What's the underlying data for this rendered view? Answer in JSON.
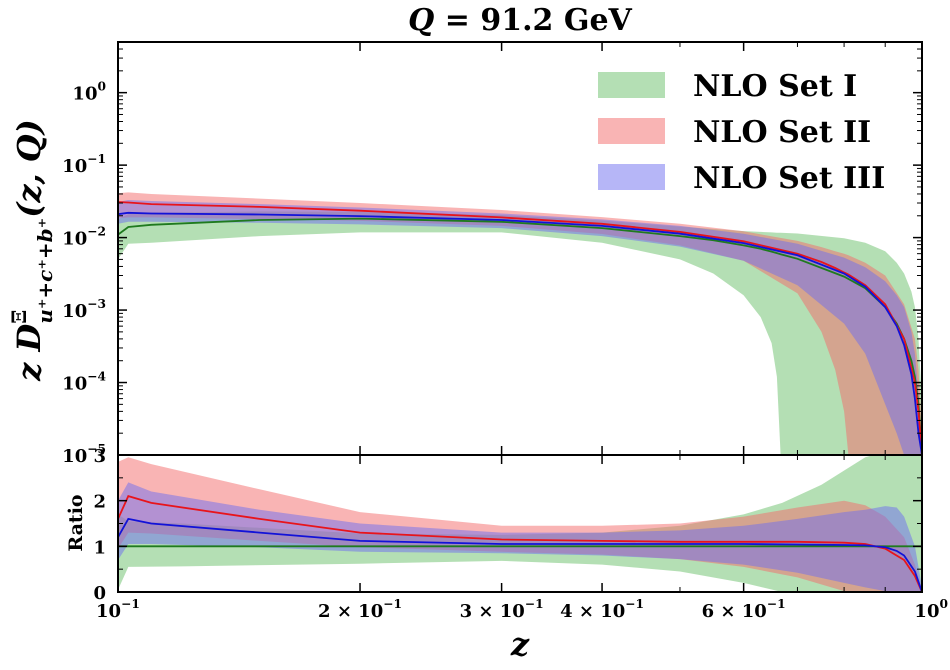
{
  "chart_data": {
    "type": "area",
    "title": "Q = 91.2 GeV",
    "title_parts": {
      "var": "Q",
      "eq": " = 91.2 GeV"
    },
    "xlabel": "z",
    "xscale": "log",
    "xlim": [
      0.1,
      1.0
    ],
    "x_ticks": [
      {
        "value": 0.1,
        "base": "10",
        "exp": "−1",
        "mult": ""
      },
      {
        "value": 0.2,
        "base": "10",
        "exp": "−1",
        "mult": "2 × "
      },
      {
        "value": 0.3,
        "base": "10",
        "exp": "−1",
        "mult": "3 × "
      },
      {
        "value": 0.4,
        "base": "10",
        "exp": "−1",
        "mult": "4 × "
      },
      {
        "value": 0.6,
        "base": "10",
        "exp": "−1",
        "mult": "6 × "
      },
      {
        "value": 1.0,
        "base": "10",
        "exp": "0",
        "mult": ""
      }
    ],
    "top_panel": {
      "ylabel": "z D^Ξ_{u⁺+c⁺+b⁺}(z, Q)",
      "ylabel_parts": {
        "pre": "z D",
        "sup": "Ξ",
        "sub": "u⁺+c⁺+b⁺",
        "post": "(z, Q)"
      },
      "yscale": "log",
      "ylim": [
        1e-05,
        5
      ],
      "y_ticks": [
        {
          "value": 1e-05,
          "base": "10",
          "exp": "−5"
        },
        {
          "value": 0.0001,
          "base": "10",
          "exp": "−4"
        },
        {
          "value": 0.001,
          "base": "10",
          "exp": "−3"
        },
        {
          "value": 0.01,
          "base": "10",
          "exp": "−2"
        },
        {
          "value": 0.1,
          "base": "10",
          "exp": "−1"
        },
        {
          "value": 1,
          "base": "10",
          "exp": "0"
        }
      ],
      "series": [
        {
          "name": "NLO Set I",
          "fill": "#6abf69",
          "fill_opacity": 0.5,
          "line": "#1f7a1f",
          "points": [
            {
              "z": 0.1,
              "c": 0.011,
              "lo": 0.005,
              "hi": 0.018
            },
            {
              "z": 0.103,
              "c": 0.014,
              "lo": 0.0082,
              "hi": 0.021
            },
            {
              "z": 0.11,
              "c": 0.015,
              "lo": 0.0085,
              "hi": 0.022
            },
            {
              "z": 0.15,
              "c": 0.0175,
              "lo": 0.0105,
              "hi": 0.023
            },
            {
              "z": 0.2,
              "c": 0.0183,
              "lo": 0.0118,
              "hi": 0.0226
            },
            {
              "z": 0.3,
              "c": 0.0165,
              "lo": 0.0118,
              "hi": 0.0205
            },
            {
              "z": 0.4,
              "c": 0.0135,
              "lo": 0.0085,
              "hi": 0.0172
            },
            {
              "z": 0.5,
              "c": 0.0105,
              "lo": 0.005,
              "hi": 0.0142
            },
            {
              "z": 0.55,
              "c": 0.0092,
              "lo": 0.0032,
              "hi": 0.0132
            },
            {
              "z": 0.6,
              "c": 0.0078,
              "lo": 0.0016,
              "hi": 0.0123
            },
            {
              "z": 0.63,
              "c": 0.007,
              "lo": 0.0008,
              "hi": 0.012
            },
            {
              "z": 0.65,
              "c": 0.0064,
              "lo": 0.00035,
              "hi": 0.0118
            },
            {
              "z": 0.66,
              "c": 0.0061,
              "lo": 0.00012,
              "hi": 0.0117
            },
            {
              "z": 0.667,
              "c": 0.0059,
              "lo": 1e-05,
              "hi": 0.0117
            },
            {
              "z": 0.7,
              "c": 0.0051,
              "lo": 1e-05,
              "hi": 0.0114
            },
            {
              "z": 0.8,
              "c": 0.0029,
              "lo": 1e-05,
              "hi": 0.0098
            },
            {
              "z": 0.85,
              "c": 0.002,
              "lo": 1e-05,
              "hi": 0.0085
            },
            {
              "z": 0.9,
              "c": 0.0011,
              "lo": 1e-05,
              "hi": 0.0065
            },
            {
              "z": 0.93,
              "c": 0.00065,
              "lo": 1e-05,
              "hi": 0.0045
            },
            {
              "z": 0.95,
              "c": 0.0004,
              "lo": 1e-05,
              "hi": 0.0032
            },
            {
              "z": 0.97,
              "c": 0.0002,
              "lo": 1e-05,
              "hi": 0.0018
            },
            {
              "z": 0.98,
              "c": 0.00012,
              "lo": 1e-05,
              "hi": 0.0011
            },
            {
              "z": 0.99,
              "c": 5e-05,
              "lo": 1e-05,
              "hi": 0.0004
            },
            {
              "z": 1.0,
              "c": 1e-05,
              "lo": 1e-05,
              "hi": 5e-05
            }
          ]
        },
        {
          "name": "NLO Set II",
          "fill": "#f46a6a",
          "fill_opacity": 0.5,
          "line": "#e8141b",
          "points": [
            {
              "z": 0.1,
              "c": 0.031,
              "lo": 0.0185,
              "hi": 0.041
            },
            {
              "z": 0.103,
              "c": 0.0305,
              "lo": 0.019,
              "hi": 0.042
            },
            {
              "z": 0.11,
              "c": 0.029,
              "lo": 0.019,
              "hi": 0.04
            },
            {
              "z": 0.15,
              "c": 0.0265,
              "lo": 0.018,
              "hi": 0.0345
            },
            {
              "z": 0.2,
              "c": 0.0235,
              "lo": 0.017,
              "hi": 0.03
            },
            {
              "z": 0.3,
              "c": 0.019,
              "lo": 0.0145,
              "hi": 0.024
            },
            {
              "z": 0.4,
              "c": 0.0155,
              "lo": 0.0112,
              "hi": 0.0192
            },
            {
              "z": 0.5,
              "c": 0.012,
              "lo": 0.0078,
              "hi": 0.0155
            },
            {
              "z": 0.6,
              "c": 0.0089,
              "lo": 0.0048,
              "hi": 0.0122
            },
            {
              "z": 0.7,
              "c": 0.006,
              "lo": 0.0017,
              "hi": 0.009
            },
            {
              "z": 0.75,
              "c": 0.0046,
              "lo": 0.0005,
              "hi": 0.0074
            },
            {
              "z": 0.78,
              "c": 0.0038,
              "lo": 0.00015,
              "hi": 0.0065
            },
            {
              "z": 0.8,
              "c": 0.0033,
              "lo": 4e-05,
              "hi": 0.006
            },
            {
              "z": 0.81,
              "c": 0.0031,
              "lo": 1e-05,
              "hi": 0.0057
            },
            {
              "z": 0.85,
              "c": 0.0022,
              "lo": 1e-05,
              "hi": 0.0045
            },
            {
              "z": 0.9,
              "c": 0.0012,
              "lo": 1e-05,
              "hi": 0.003
            },
            {
              "z": 0.95,
              "c": 0.0004,
              "lo": 1e-05,
              "hi": 0.0012
            },
            {
              "z": 0.98,
              "c": 0.0001,
              "lo": 1e-05,
              "hi": 0.0004
            },
            {
              "z": 0.99,
              "c": 4e-05,
              "lo": 1e-05,
              "hi": 0.00015
            },
            {
              "z": 1.0,
              "c": 1e-05,
              "lo": 1e-05,
              "hi": 2e-05
            }
          ]
        },
        {
          "name": "NLO Set III",
          "fill": "#6e6ef0",
          "fill_opacity": 0.5,
          "line": "#1212d8",
          "points": [
            {
              "z": 0.1,
              "c": 0.021,
              "lo": 0.0155,
              "hi": 0.031
            },
            {
              "z": 0.103,
              "c": 0.022,
              "lo": 0.0165,
              "hi": 0.033
            },
            {
              "z": 0.11,
              "c": 0.0215,
              "lo": 0.0165,
              "hi": 0.032
            },
            {
              "z": 0.15,
              "c": 0.0208,
              "lo": 0.016,
              "hi": 0.029
            },
            {
              "z": 0.2,
              "c": 0.0198,
              "lo": 0.0152,
              "hi": 0.026
            },
            {
              "z": 0.3,
              "c": 0.0175,
              "lo": 0.0135,
              "hi": 0.0215
            },
            {
              "z": 0.4,
              "c": 0.0145,
              "lo": 0.0105,
              "hi": 0.0178
            },
            {
              "z": 0.5,
              "c": 0.0113,
              "lo": 0.0075,
              "hi": 0.0145
            },
            {
              "z": 0.6,
              "c": 0.0084,
              "lo": 0.0048,
              "hi": 0.0113
            },
            {
              "z": 0.7,
              "c": 0.0057,
              "lo": 0.0022,
              "hi": 0.0082
            },
            {
              "z": 0.8,
              "c": 0.0032,
              "lo": 0.00065,
              "hi": 0.0053
            },
            {
              "z": 0.85,
              "c": 0.0021,
              "lo": 0.00025,
              "hi": 0.0039
            },
            {
              "z": 0.9,
              "c": 0.0011,
              "lo": 5e-05,
              "hi": 0.0025
            },
            {
              "z": 0.93,
              "c": 0.0006,
              "lo": 2e-05,
              "hi": 0.0016
            },
            {
              "z": 0.95,
              "c": 0.00033,
              "lo": 1e-05,
              "hi": 0.0011
            },
            {
              "z": 0.97,
              "c": 0.00013,
              "lo": 1e-05,
              "hi": 0.0005
            },
            {
              "z": 0.98,
              "c": 6e-05,
              "lo": 1e-05,
              "hi": 0.00025
            },
            {
              "z": 0.99,
              "c": 2e-05,
              "lo": 1e-05,
              "hi": 7e-05
            },
            {
              "z": 1.0,
              "c": 1e-05,
              "lo": 1e-05,
              "hi": 1e-05
            }
          ]
        }
      ]
    },
    "bottom_panel": {
      "ylabel": "Ratio",
      "yscale": "linear",
      "ylim": [
        0,
        3
      ],
      "y_ticks": [
        {
          "value": 0,
          "label": "0"
        },
        {
          "value": 1,
          "label": "1"
        },
        {
          "value": 2,
          "label": "2"
        },
        {
          "value": 3,
          "label": "3"
        }
      ],
      "series": [
        {
          "name": "NLO Set I",
          "fill": "#6abf69",
          "fill_opacity": 0.5,
          "line": "#1f7a1f",
          "points": [
            {
              "z": 0.1,
              "c": 1.0,
              "lo": 0.05,
              "hi": 1.7
            },
            {
              "z": 0.103,
              "c": 1.0,
              "lo": 0.55,
              "hi": 1.55
            },
            {
              "z": 0.12,
              "c": 1.0,
              "lo": 0.56,
              "hi": 1.5
            },
            {
              "z": 0.2,
              "c": 1.0,
              "lo": 0.62,
              "hi": 1.28
            },
            {
              "z": 0.3,
              "c": 1.0,
              "lo": 0.68,
              "hi": 1.25
            },
            {
              "z": 0.4,
              "c": 1.0,
              "lo": 0.6,
              "hi": 1.3
            },
            {
              "z": 0.5,
              "c": 1.0,
              "lo": 0.45,
              "hi": 1.45
            },
            {
              "z": 0.6,
              "c": 1.0,
              "lo": 0.2,
              "hi": 1.7
            },
            {
              "z": 0.67,
              "c": 1.0,
              "lo": 0.0,
              "hi": 1.95
            },
            {
              "z": 0.75,
              "c": 1.0,
              "lo": 0.0,
              "hi": 2.35
            },
            {
              "z": 0.85,
              "c": 1.0,
              "lo": 0.0,
              "hi": 2.95
            },
            {
              "z": 0.87,
              "c": 1.0,
              "lo": 0.0,
              "hi": 3.0
            },
            {
              "z": 1.0,
              "c": 1.0,
              "lo": 0.0,
              "hi": 3.0
            }
          ]
        },
        {
          "name": "NLO Set II",
          "fill": "#f46a6a",
          "fill_opacity": 0.5,
          "line": "#e8141b",
          "points": [
            {
              "z": 0.1,
              "c": 1.6,
              "lo": 0.95,
              "hi": 2.85
            },
            {
              "z": 0.103,
              "c": 2.1,
              "lo": 1.3,
              "hi": 2.95
            },
            {
              "z": 0.11,
              "c": 1.95,
              "lo": 1.28,
              "hi": 2.8
            },
            {
              "z": 0.15,
              "c": 1.6,
              "lo": 1.12,
              "hi": 2.25
            },
            {
              "z": 0.2,
              "c": 1.3,
              "lo": 0.98,
              "hi": 1.75
            },
            {
              "z": 0.3,
              "c": 1.15,
              "lo": 0.88,
              "hi": 1.45
            },
            {
              "z": 0.4,
              "c": 1.12,
              "lo": 0.82,
              "hi": 1.45
            },
            {
              "z": 0.5,
              "c": 1.1,
              "lo": 0.72,
              "hi": 1.5
            },
            {
              "z": 0.6,
              "c": 1.1,
              "lo": 0.55,
              "hi": 1.65
            },
            {
              "z": 0.7,
              "c": 1.1,
              "lo": 0.32,
              "hi": 1.85
            },
            {
              "z": 0.8,
              "c": 1.08,
              "lo": 0.02,
              "hi": 2.0
            },
            {
              "z": 0.85,
              "c": 1.05,
              "lo": 0.0,
              "hi": 1.9
            },
            {
              "z": 0.9,
              "c": 0.95,
              "lo": 0.0,
              "hi": 1.65
            },
            {
              "z": 0.95,
              "c": 0.7,
              "lo": 0.0,
              "hi": 1.2
            },
            {
              "z": 0.98,
              "c": 0.35,
              "lo": 0.0,
              "hi": 0.6
            },
            {
              "z": 1.0,
              "c": 0.0,
              "lo": 0.0,
              "hi": 0.05
            }
          ]
        },
        {
          "name": "NLO Set III",
          "fill": "#6e6ef0",
          "fill_opacity": 0.5,
          "line": "#1212d8",
          "points": [
            {
              "z": 0.1,
              "c": 1.2,
              "lo": 0.7,
              "hi": 2.0
            },
            {
              "z": 0.103,
              "c": 1.6,
              "lo": 1.05,
              "hi": 2.4
            },
            {
              "z": 0.11,
              "c": 1.5,
              "lo": 1.05,
              "hi": 2.2
            },
            {
              "z": 0.15,
              "c": 1.3,
              "lo": 0.98,
              "hi": 1.8
            },
            {
              "z": 0.2,
              "c": 1.12,
              "lo": 0.88,
              "hi": 1.5
            },
            {
              "z": 0.3,
              "c": 1.05,
              "lo": 0.85,
              "hi": 1.3
            },
            {
              "z": 0.4,
              "c": 1.05,
              "lo": 0.8,
              "hi": 1.3
            },
            {
              "z": 0.5,
              "c": 1.05,
              "lo": 0.72,
              "hi": 1.35
            },
            {
              "z": 0.6,
              "c": 1.05,
              "lo": 0.6,
              "hi": 1.45
            },
            {
              "z": 0.7,
              "c": 1.04,
              "lo": 0.42,
              "hi": 1.6
            },
            {
              "z": 0.8,
              "c": 1.03,
              "lo": 0.2,
              "hi": 1.75
            },
            {
              "z": 0.85,
              "c": 1.02,
              "lo": 0.1,
              "hi": 1.8
            },
            {
              "z": 0.9,
              "c": 0.98,
              "lo": 0.02,
              "hi": 1.88
            },
            {
              "z": 0.93,
              "c": 0.9,
              "lo": 0.0,
              "hi": 1.85
            },
            {
              "z": 0.95,
              "c": 0.8,
              "lo": 0.0,
              "hi": 1.65
            },
            {
              "z": 0.98,
              "c": 0.45,
              "lo": 0.0,
              "hi": 1.0
            },
            {
              "z": 1.0,
              "c": 0.0,
              "lo": 0.0,
              "hi": 0.1
            }
          ]
        }
      ]
    },
    "legend": {
      "placement": "top-right",
      "entries": [
        "NLO Set I",
        "NLO Set II",
        "NLO Set III"
      ]
    }
  }
}
